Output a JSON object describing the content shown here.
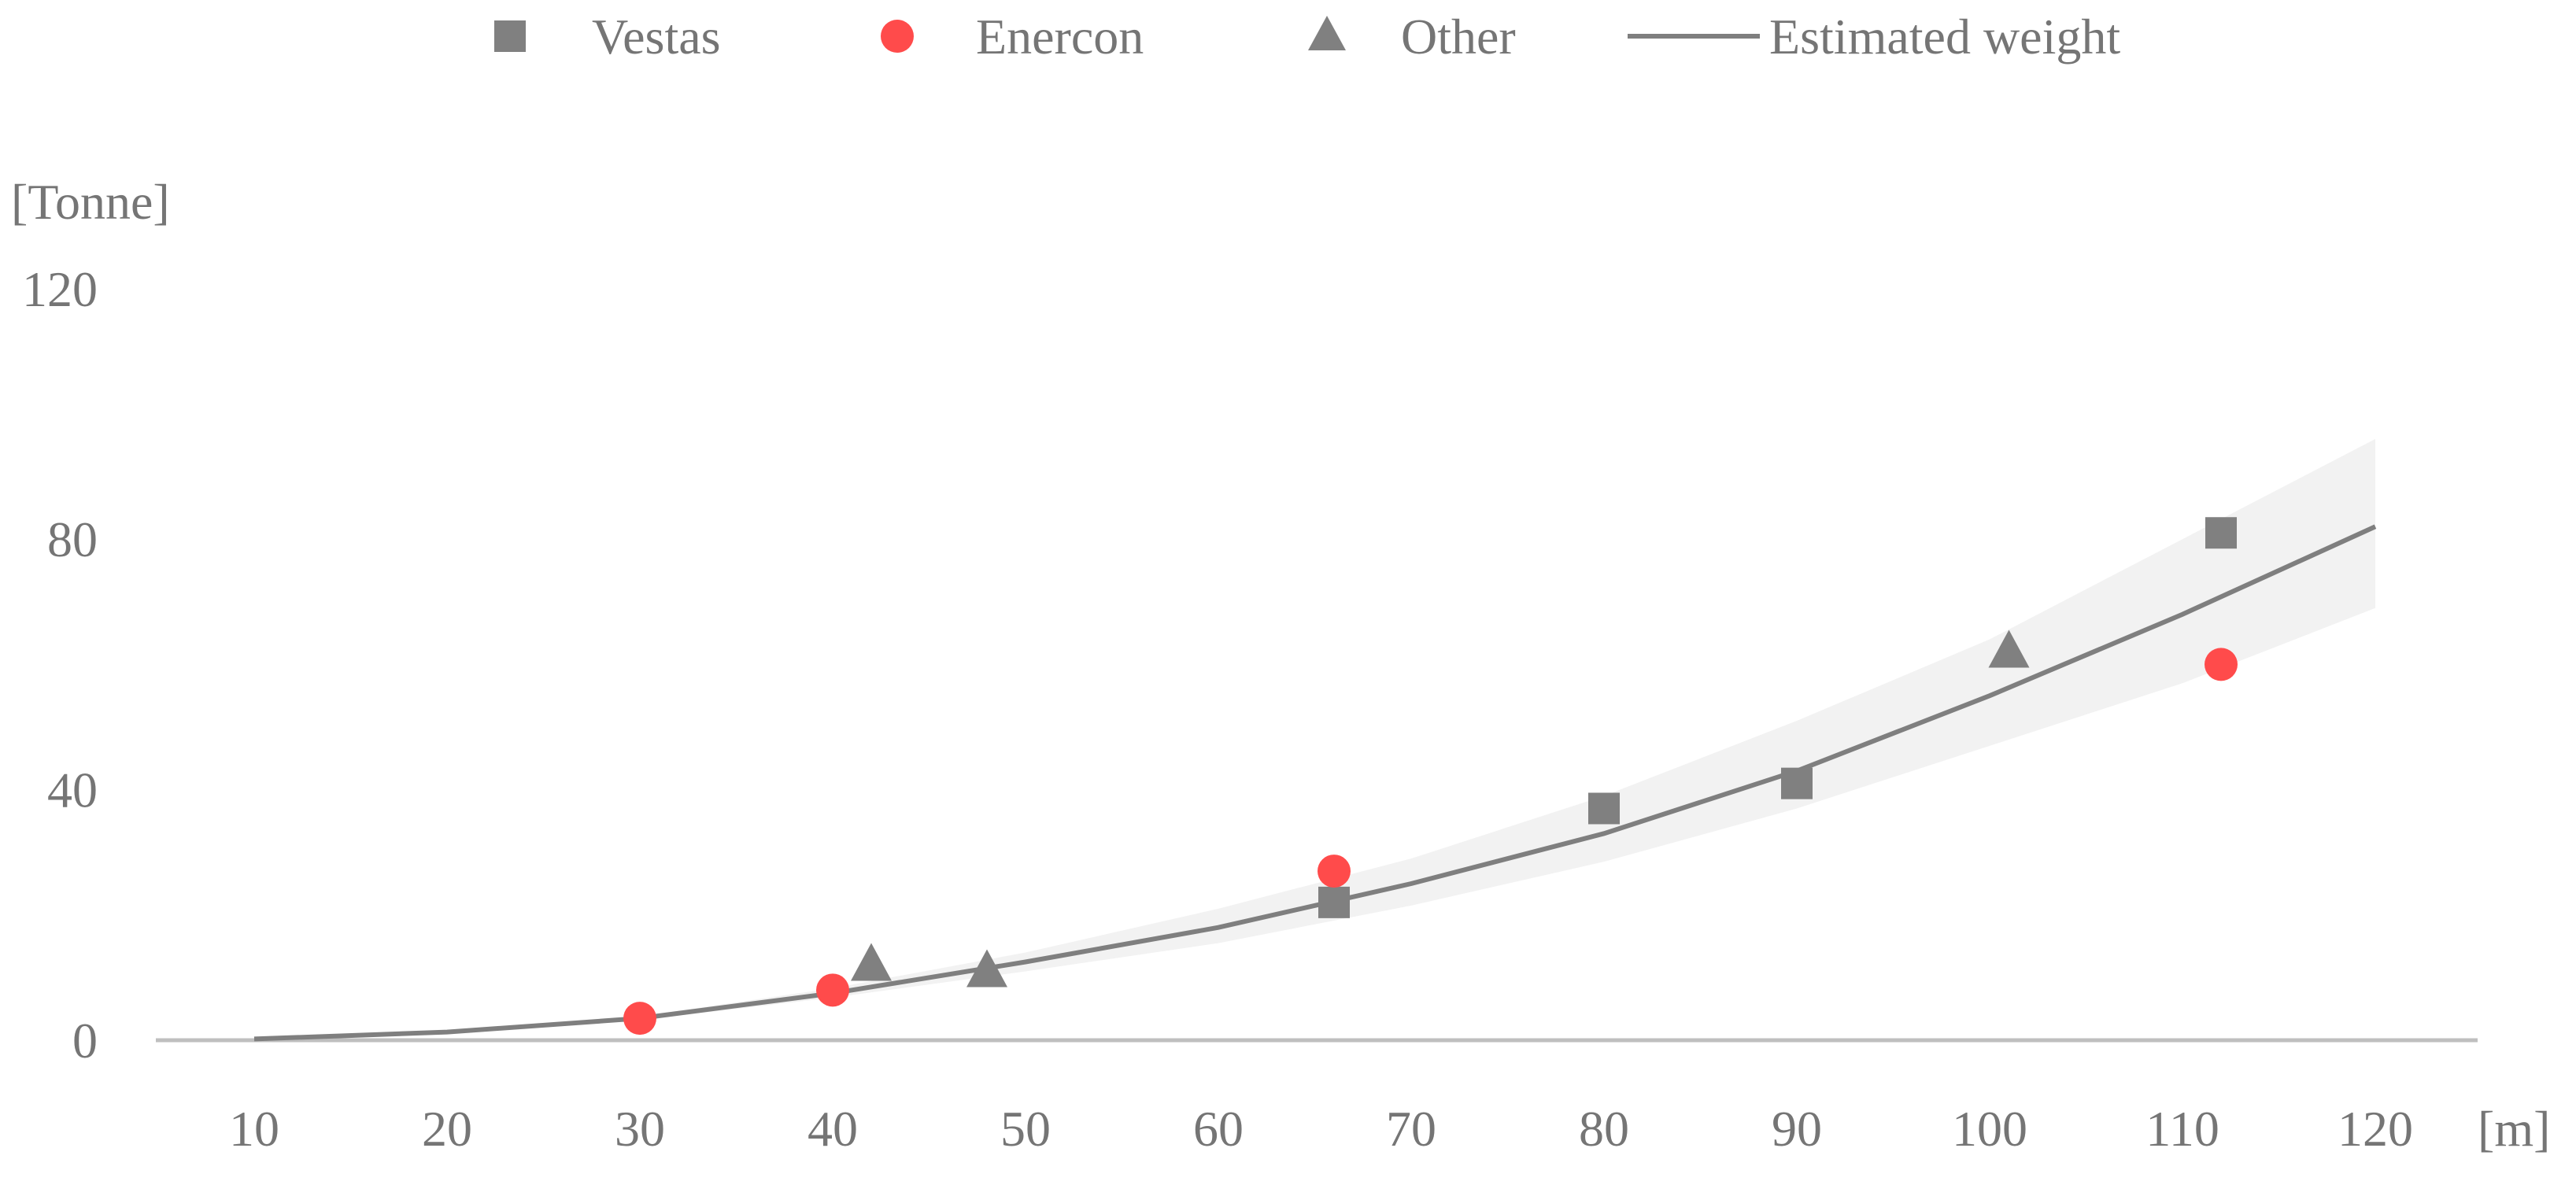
{
  "chart_data": {
    "type": "scatter",
    "title": "",
    "xlabel": "[m]",
    "ylabel": "[Tonne]",
    "xlim": [
      5,
      128
    ],
    "ylim": [
      0,
      120
    ],
    "x_ticks": [
      "10",
      "20",
      "30",
      "40",
      "50",
      "60",
      "70",
      "80",
      "90",
      "100",
      "110",
      "120"
    ],
    "y_ticks": [
      "0",
      "40",
      "80",
      "120"
    ],
    "grid": false,
    "legend_position": "top",
    "series": [
      {
        "name": "Vestas",
        "marker": "square",
        "color": "#808080",
        "points": [
          [
            66,
            22
          ],
          [
            80,
            37
          ],
          [
            90,
            41
          ],
          [
            112,
            81
          ]
        ]
      },
      {
        "name": "Enercon",
        "marker": "circle",
        "color": "#ff4b4b",
        "points": [
          [
            30,
            3.5
          ],
          [
            40,
            8
          ],
          [
            66,
            27
          ],
          [
            112,
            60
          ]
        ]
      },
      {
        "name": "Other",
        "marker": "triangle",
        "color": "#808080",
        "points": [
          [
            42,
            12
          ],
          [
            48,
            11
          ],
          [
            101,
            62
          ]
        ]
      },
      {
        "name": "Estimated weight",
        "marker": "line",
        "color": "#7f7f7f",
        "points": [
          [
            10,
            0.2
          ],
          [
            20,
            1.3
          ],
          [
            30,
            3.5
          ],
          [
            40,
            7.5
          ],
          [
            50,
            12.5
          ],
          [
            60,
            18
          ],
          [
            70,
            25
          ],
          [
            80,
            33
          ],
          [
            90,
            43
          ],
          [
            100,
            55
          ],
          [
            110,
            68
          ],
          [
            120,
            82
          ]
        ]
      }
    ],
    "confidence_band": {
      "color": "#f2f2f2",
      "x": [
        10,
        20,
        30,
        40,
        50,
        60,
        70,
        80,
        90,
        100,
        110,
        120
      ],
      "upper": [
        0.2,
        1.4,
        3.8,
        8.3,
        14,
        21,
        29,
        39,
        51,
        64,
        80,
        96
      ],
      "lower": [
        0.2,
        1.2,
        3.2,
        6.8,
        11,
        15.5,
        21.5,
        28.5,
        37,
        47,
        57,
        69
      ]
    }
  }
}
